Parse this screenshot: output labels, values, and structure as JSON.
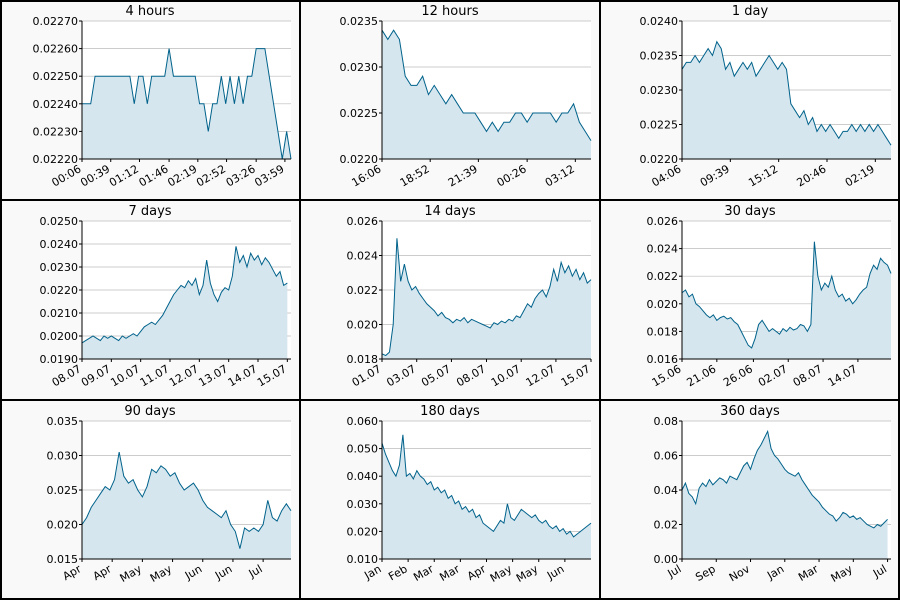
{
  "chart_data": [
    {
      "type": "line",
      "title": "4 hours",
      "values": [
        0.0224,
        0.0224,
        0.0224,
        0.0225,
        0.0225,
        0.0225,
        0.0225,
        0.0225,
        0.0225,
        0.0225,
        0.0225,
        0.0225,
        0.0224,
        0.0225,
        0.0225,
        0.0224,
        0.0225,
        0.0225,
        0.0225,
        0.0225,
        0.0226,
        0.0225,
        0.0225,
        0.0225,
        0.0225,
        0.0225,
        0.0225,
        0.0224,
        0.0224,
        0.0223,
        0.0224,
        0.0224,
        0.0225,
        0.0224,
        0.0225,
        0.0224,
        0.0225,
        0.0224,
        0.0225,
        0.0225,
        0.0226,
        0.0226,
        0.0226,
        0.0225,
        0.0224,
        0.0223,
        0.0222,
        0.0223,
        0.0222
      ],
      "xlim": [
        0,
        48
      ],
      "xticks": [
        {
          "value": 0,
          "label": "00:06"
        },
        {
          "value": 6.6,
          "label": "00:39"
        },
        {
          "value": 13.2,
          "label": "01:12"
        },
        {
          "value": 20,
          "label": "01:46"
        },
        {
          "value": 26.6,
          "label": "02:19"
        },
        {
          "value": 33.2,
          "label": "02:52"
        },
        {
          "value": 40,
          "label": "03:26"
        },
        {
          "value": 46.6,
          "label": "03:59"
        }
      ],
      "ylim": [
        0.0222,
        0.0227
      ],
      "yticks": [
        {
          "value": 0.0222,
          "label": "0.02220"
        },
        {
          "value": 0.0223,
          "label": "0.02230"
        },
        {
          "value": 0.0224,
          "label": "0.02240"
        },
        {
          "value": 0.0225,
          "label": "0.02250"
        },
        {
          "value": 0.0226,
          "label": "0.02260"
        },
        {
          "value": 0.0227,
          "label": "0.02270"
        }
      ],
      "color": "#00628b",
      "fill": "#d6e6ee",
      "grid": true
    },
    {
      "type": "line",
      "title": "12 hours",
      "values": [
        0.0234,
        0.0233,
        0.0234,
        0.0233,
        0.0229,
        0.0228,
        0.0228,
        0.0229,
        0.0227,
        0.0228,
        0.0227,
        0.0226,
        0.0227,
        0.0226,
        0.0225,
        0.0225,
        0.0225,
        0.0224,
        0.0223,
        0.0224,
        0.0223,
        0.0224,
        0.0224,
        0.0225,
        0.0225,
        0.0224,
        0.0225,
        0.0225,
        0.0225,
        0.0225,
        0.0224,
        0.0225,
        0.0225,
        0.0226,
        0.0224,
        0.0223,
        0.0222
      ],
      "xlim": [
        0,
        36
      ],
      "xticks": [
        {
          "value": 0,
          "label": "16:06"
        },
        {
          "value": 8.3,
          "label": "18:52"
        },
        {
          "value": 16.6,
          "label": "21:39"
        },
        {
          "value": 25,
          "label": "00:26"
        },
        {
          "value": 33.3,
          "label": "03:12"
        }
      ],
      "ylim": [
        0.022,
        0.0235
      ],
      "yticks": [
        {
          "value": 0.022,
          "label": "0.0220"
        },
        0.0225,
        {
          "value": 0.023,
          "label": "0.0230"
        },
        0.0235
      ],
      "color": "#00628b",
      "fill": "#d6e6ee",
      "grid": true
    },
    {
      "type": "line",
      "title": "1 day",
      "values": [
        0.0233,
        0.0234,
        0.0234,
        0.0235,
        0.0234,
        0.0235,
        0.0236,
        0.0235,
        0.0237,
        0.0236,
        0.0233,
        0.0234,
        0.0232,
        0.0233,
        0.0234,
        0.0233,
        0.0234,
        0.0232,
        0.0233,
        0.0234,
        0.0235,
        0.0234,
        0.0233,
        0.0234,
        0.0233,
        0.0228,
        0.0227,
        0.0226,
        0.0227,
        0.0225,
        0.0226,
        0.0224,
        0.0225,
        0.0224,
        0.0225,
        0.0224,
        0.0223,
        0.0224,
        0.0224,
        0.0225,
        0.0224,
        0.0225,
        0.0224,
        0.0225,
        0.0224,
        0.0225,
        0.0224,
        0.0223,
        0.0222
      ],
      "xlim": [
        0,
        48
      ],
      "xticks": [
        {
          "value": 0,
          "label": "04:06"
        },
        {
          "value": 11.1,
          "label": "09:39"
        },
        {
          "value": 22.2,
          "label": "15:12"
        },
        {
          "value": 33.3,
          "label": "20:46"
        },
        {
          "value": 44.4,
          "label": "02:19"
        }
      ],
      "ylim": [
        0.022,
        0.024
      ],
      "yticks": [
        {
          "value": 0.022,
          "label": "0.0220"
        },
        0.0225,
        {
          "value": 0.023,
          "label": "0.0230"
        },
        0.0235,
        {
          "value": 0.024,
          "label": "0.0240"
        }
      ],
      "color": "#00628b",
      "fill": "#d6e6ee",
      "grid": true
    },
    {
      "type": "line",
      "title": "7 days",
      "values": [
        0.0197,
        0.0198,
        0.0199,
        0.02,
        0.0199,
        0.0198,
        0.02,
        0.0199,
        0.02,
        0.0199,
        0.0198,
        0.02,
        0.0199,
        0.02,
        0.0201,
        0.02,
        0.0202,
        0.0204,
        0.0205,
        0.0206,
        0.0205,
        0.0207,
        0.0209,
        0.0212,
        0.0215,
        0.0218,
        0.022,
        0.0222,
        0.0221,
        0.0224,
        0.0222,
        0.0225,
        0.0218,
        0.0222,
        0.0233,
        0.0223,
        0.0218,
        0.0215,
        0.0219,
        0.0221,
        0.022,
        0.0226,
        0.0239,
        0.0232,
        0.0235,
        0.023,
        0.0236,
        0.0233,
        0.0235,
        0.0231,
        0.0234,
        0.0232,
        0.0229,
        0.0226,
        0.0228,
        0.0222,
        0.0223
      ],
      "xlim": [
        0,
        57
      ],
      "xticks": [
        {
          "value": 0,
          "label": "08.07"
        },
        {
          "value": 8,
          "label": "09.07"
        },
        {
          "value": 16,
          "label": "10.07"
        },
        {
          "value": 24,
          "label": "11.07"
        },
        {
          "value": 32,
          "label": "12.07"
        },
        {
          "value": 40,
          "label": "13.07"
        },
        {
          "value": 48,
          "label": "14.07"
        },
        {
          "value": 56,
          "label": "15.07"
        }
      ],
      "ylim": [
        0.019,
        0.025
      ],
      "yticks": [
        {
          "value": 0.019,
          "label": "0.0190"
        },
        {
          "value": 0.02,
          "label": "0.0200"
        },
        {
          "value": 0.021,
          "label": "0.0210"
        },
        {
          "value": 0.022,
          "label": "0.0220"
        },
        {
          "value": 0.023,
          "label": "0.0230"
        },
        {
          "value": 0.024,
          "label": "0.0240"
        },
        {
          "value": 0.025,
          "label": "0.0250"
        }
      ],
      "color": "#00628b",
      "fill": "#d6e6ee",
      "grid": true
    },
    {
      "type": "line",
      "title": "14 days",
      "values": [
        0.0183,
        0.0182,
        0.0184,
        0.02,
        0.025,
        0.0225,
        0.0235,
        0.0225,
        0.022,
        0.0222,
        0.0218,
        0.0215,
        0.0212,
        0.021,
        0.0208,
        0.0205,
        0.0207,
        0.0204,
        0.0203,
        0.0201,
        0.0203,
        0.0202,
        0.0204,
        0.0201,
        0.0203,
        0.0202,
        0.0201,
        0.02,
        0.0199,
        0.0198,
        0.0201,
        0.02,
        0.0202,
        0.0201,
        0.0203,
        0.0202,
        0.0205,
        0.0204,
        0.0208,
        0.0212,
        0.021,
        0.0215,
        0.0218,
        0.022,
        0.0216,
        0.0222,
        0.0232,
        0.0225,
        0.0236,
        0.023,
        0.0234,
        0.0228,
        0.0232,
        0.0226,
        0.023,
        0.0224,
        0.0226
      ],
      "xlim": [
        0,
        56
      ],
      "xticks": [
        {
          "value": 0,
          "label": "01.07"
        },
        {
          "value": 9.3,
          "label": "03.07"
        },
        {
          "value": 18.6,
          "label": "05.07"
        },
        {
          "value": 28,
          "label": "08.07"
        },
        {
          "value": 37.3,
          "label": "10.07"
        },
        {
          "value": 46.6,
          "label": "12.07"
        },
        {
          "value": 56,
          "label": "15.07"
        }
      ],
      "ylim": [
        0.018,
        0.026
      ],
      "yticks": [
        0.018,
        {
          "value": 0.02,
          "label": "0.020"
        },
        0.022,
        0.024,
        0.026
      ],
      "color": "#00628b",
      "fill": "#d6e6ee",
      "grid": true
    },
    {
      "type": "line",
      "title": "30 days",
      "values": [
        0.0208,
        0.021,
        0.0205,
        0.0207,
        0.02,
        0.0198,
        0.0195,
        0.0192,
        0.019,
        0.0192,
        0.0188,
        0.019,
        0.0191,
        0.0189,
        0.019,
        0.0187,
        0.0185,
        0.018,
        0.0175,
        0.017,
        0.0168,
        0.0175,
        0.0185,
        0.0188,
        0.0184,
        0.018,
        0.0182,
        0.018,
        0.0178,
        0.0182,
        0.018,
        0.0183,
        0.0181,
        0.0182,
        0.0185,
        0.0184,
        0.018,
        0.0185,
        0.0245,
        0.022,
        0.021,
        0.0215,
        0.0212,
        0.022,
        0.021,
        0.0205,
        0.0207,
        0.0202,
        0.0204,
        0.02,
        0.0203,
        0.0207,
        0.021,
        0.0212,
        0.0222,
        0.0228,
        0.0225,
        0.0233,
        0.023,
        0.0228,
        0.0222
      ],
      "xlim": [
        0,
        60
      ],
      "xticks": [
        {
          "value": 0,
          "label": "15.06"
        },
        {
          "value": 10,
          "label": "21.06"
        },
        {
          "value": 20.5,
          "label": "26.06"
        },
        {
          "value": 30.5,
          "label": "02.07"
        },
        {
          "value": 40.5,
          "label": "08.07"
        },
        {
          "value": 50.5,
          "label": "14.07"
        }
      ],
      "ylim": [
        0.016,
        0.026
      ],
      "yticks": [
        0.016,
        0.018,
        {
          "value": 0.02,
          "label": "0.020"
        },
        0.022,
        0.024,
        0.026
      ],
      "color": "#00628b",
      "fill": "#d6e6ee",
      "grid": true
    },
    {
      "type": "line",
      "title": "90 days",
      "values": [
        0.02,
        0.021,
        0.0225,
        0.0235,
        0.0245,
        0.0255,
        0.025,
        0.0265,
        0.0305,
        0.027,
        0.026,
        0.0265,
        0.025,
        0.024,
        0.0255,
        0.028,
        0.0275,
        0.0285,
        0.028,
        0.027,
        0.0275,
        0.026,
        0.025,
        0.0255,
        0.026,
        0.025,
        0.0235,
        0.0225,
        0.022,
        0.0215,
        0.021,
        0.022,
        0.02,
        0.019,
        0.0165,
        0.0195,
        0.019,
        0.0195,
        0.019,
        0.02,
        0.0235,
        0.021,
        0.0205,
        0.022,
        0.023,
        0.022
      ],
      "xlim": [
        0,
        45
      ],
      "xticks": [
        {
          "value": 0,
          "label": "Apr"
        },
        {
          "value": 6.5,
          "label": "Apr"
        },
        {
          "value": 13,
          "label": "May"
        },
        {
          "value": 19.5,
          "label": "May"
        },
        {
          "value": 26,
          "label": "Jun"
        },
        {
          "value": 32.5,
          "label": "Jun"
        },
        {
          "value": 39,
          "label": "Jul"
        }
      ],
      "ylim": [
        0.015,
        0.035
      ],
      "yticks": [
        0.015,
        {
          "value": 0.02,
          "label": "0.020"
        },
        0.025,
        {
          "value": 0.03,
          "label": "0.030"
        },
        0.035
      ],
      "color": "#00628b",
      "fill": "#d6e6ee",
      "grid": true
    },
    {
      "type": "line",
      "title": "180 days",
      "values": [
        0.052,
        0.048,
        0.045,
        0.042,
        0.04,
        0.044,
        0.055,
        0.04,
        0.041,
        0.039,
        0.042,
        0.04,
        0.039,
        0.037,
        0.038,
        0.035,
        0.036,
        0.034,
        0.035,
        0.032,
        0.033,
        0.03,
        0.031,
        0.028,
        0.029,
        0.027,
        0.028,
        0.025,
        0.026,
        0.023,
        0.022,
        0.021,
        0.02,
        0.022,
        0.024,
        0.023,
        0.03,
        0.025,
        0.024,
        0.026,
        0.028,
        0.027,
        0.026,
        0.025,
        0.026,
        0.024,
        0.023,
        0.024,
        0.022,
        0.021,
        0.022,
        0.02,
        0.021,
        0.019,
        0.02,
        0.018,
        0.019,
        0.02,
        0.021,
        0.022,
        0.023
      ],
      "xlim": [
        0,
        60
      ],
      "xticks": [
        {
          "value": 0,
          "label": "Jan"
        },
        {
          "value": 7.5,
          "label": "Feb"
        },
        {
          "value": 15,
          "label": "Mar"
        },
        {
          "value": 22.5,
          "label": "Mar"
        },
        {
          "value": 30,
          "label": "Apr"
        },
        {
          "value": 37.5,
          "label": "May"
        },
        {
          "value": 45,
          "label": "May"
        },
        {
          "value": 52.5,
          "label": "Jun"
        }
      ],
      "ylim": [
        0.01,
        0.06
      ],
      "yticks": [
        {
          "value": 0.01,
          "label": "0.010"
        },
        {
          "value": 0.02,
          "label": "0.020"
        },
        {
          "value": 0.03,
          "label": "0.030"
        },
        {
          "value": 0.04,
          "label": "0.040"
        },
        {
          "value": 0.05,
          "label": "0.050"
        },
        {
          "value": 0.06,
          "label": "0.060"
        }
      ],
      "color": "#00628b",
      "fill": "#d6e6ee",
      "grid": true
    },
    {
      "type": "line",
      "title": "360 days",
      "values": [
        0.04,
        0.044,
        0.038,
        0.036,
        0.032,
        0.041,
        0.044,
        0.042,
        0.046,
        0.043,
        0.045,
        0.047,
        0.046,
        0.044,
        0.048,
        0.047,
        0.046,
        0.05,
        0.054,
        0.056,
        0.052,
        0.058,
        0.063,
        0.066,
        0.07,
        0.074,
        0.064,
        0.06,
        0.058,
        0.055,
        0.052,
        0.05,
        0.049,
        0.048,
        0.05,
        0.046,
        0.043,
        0.04,
        0.037,
        0.035,
        0.033,
        0.03,
        0.028,
        0.026,
        0.025,
        0.022,
        0.024,
        0.027,
        0.026,
        0.024,
        0.025,
        0.023,
        0.024,
        0.022,
        0.02,
        0.019,
        0.018,
        0.02,
        0.019,
        0.021,
        0.023
      ],
      "xlim": [
        0,
        61
      ],
      "xticks": [
        {
          "value": 0,
          "label": "Jul"
        },
        {
          "value": 10,
          "label": "Sep"
        },
        {
          "value": 20,
          "label": "Nov"
        },
        {
          "value": 30,
          "label": "Jan"
        },
        {
          "value": 40,
          "label": "Mar"
        },
        {
          "value": 50,
          "label": "May"
        },
        {
          "value": 60,
          "label": "Jul"
        }
      ],
      "ylim": [
        0,
        0.08
      ],
      "yticks": [
        {
          "value": 0,
          "label": "0.00"
        },
        0.02,
        0.04,
        0.06,
        0.08
      ],
      "color": "#00628b",
      "fill": "#d6e6ee",
      "grid": true
    }
  ]
}
